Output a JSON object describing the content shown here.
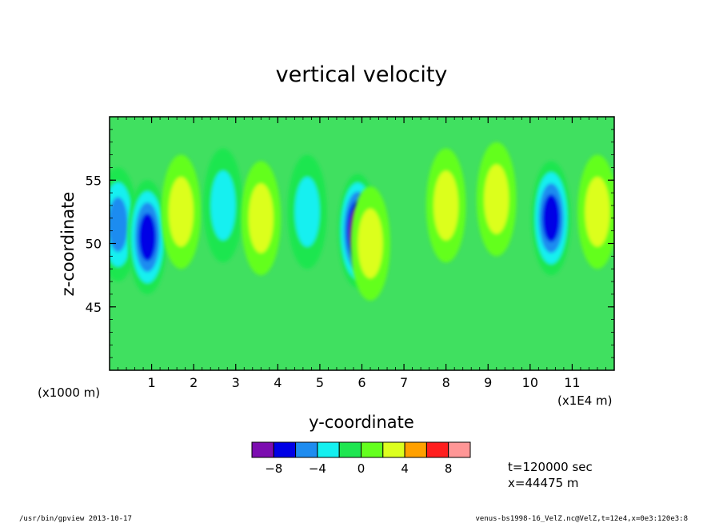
{
  "chart_data": {
    "type": "heatmap",
    "title": "vertical velocity",
    "xlabel": "y-coordinate",
    "ylabel": "z-coordinate",
    "x_unit_note": "(x1E4 m)",
    "y_unit_note": "(x1000 m)",
    "xlim": [
      0,
      12
    ],
    "ylim": [
      40,
      60
    ],
    "xticks": [
      1,
      2,
      3,
      4,
      5,
      6,
      7,
      8,
      9,
      10,
      11
    ],
    "yticks": [
      45,
      50,
      55
    ],
    "grid": false,
    "levels": [
      -10,
      -8,
      -6,
      -4,
      -2,
      0,
      2,
      4,
      6,
      8,
      10
    ],
    "colorbar_ticks": [
      -8,
      -4,
      0,
      4,
      8
    ],
    "colorbar_colors": [
      "#7c0db0",
      "#0000e6",
      "#1e8cf0",
      "#14f0f0",
      "#1ee650",
      "#64ff1e",
      "#dcff1e",
      "#ffa000",
      "#ff1e1e",
      "#ff9696"
    ],
    "background_color": "#40e060",
    "features": [
      {
        "y": 0.2,
        "z": 51.5,
        "value": -5
      },
      {
        "y": 0.9,
        "z": 50.5,
        "value": -7
      },
      {
        "y": 1.7,
        "z": 52.5,
        "value": 4
      },
      {
        "y": 2.7,
        "z": 53.0,
        "value": -3
      },
      {
        "y": 3.6,
        "z": 52.0,
        "value": 3
      },
      {
        "y": 4.7,
        "z": 52.5,
        "value": -4
      },
      {
        "y": 5.9,
        "z": 51.0,
        "value": -9
      },
      {
        "y": 6.2,
        "z": 50.0,
        "value": 4
      },
      {
        "y": 8.0,
        "z": 53.0,
        "value": 3
      },
      {
        "y": 9.2,
        "z": 53.5,
        "value": 4
      },
      {
        "y": 10.5,
        "z": 52.0,
        "value": -8
      },
      {
        "y": 11.6,
        "z": 52.5,
        "value": 3
      }
    ]
  },
  "info": {
    "time_label": "t=120000 sec",
    "x_label": "x=44475 m"
  },
  "footer": {
    "left": "/usr/bin/gpview   2013-10-17",
    "right": "venus-bs1998-16_VelZ.nc@VelZ,t=12e4,x=0e3:120e3:8"
  }
}
